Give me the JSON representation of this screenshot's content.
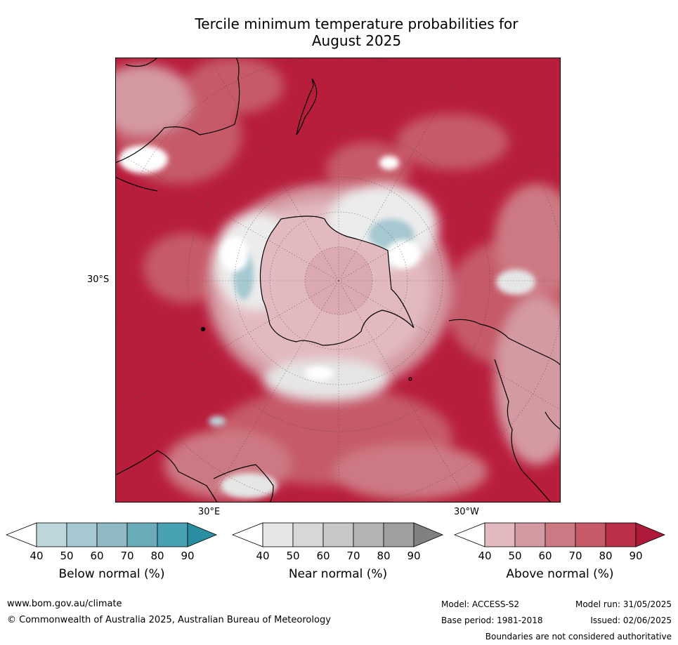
{
  "title": {
    "line1": "Tercile minimum temperature probabilities for",
    "line2": "August 2025"
  },
  "map": {
    "projection": "south-polar-stereographic",
    "lat_label": "30°S",
    "lon_label_east": "30°E",
    "lon_label_west": "30°W"
  },
  "colorbars": [
    {
      "title": "Below normal (%)",
      "ticks": [
        "40",
        "50",
        "60",
        "70",
        "80",
        "90"
      ],
      "colors": [
        "#ffffff",
        "#bdd6dc",
        "#a6c8d0",
        "#8fb9c5",
        "#6aabba",
        "#48a1b2",
        "#2a8ea3"
      ]
    },
    {
      "title": "Near normal (%)",
      "ticks": [
        "40",
        "50",
        "60",
        "70",
        "80",
        "90"
      ],
      "colors": [
        "#ffffff",
        "#e6e6e6",
        "#d7d7d7",
        "#c8c8c8",
        "#b4b4b4",
        "#9f9f9f",
        "#808080"
      ]
    },
    {
      "title": "Above normal (%)",
      "ticks": [
        "40",
        "50",
        "60",
        "70",
        "80",
        "90"
      ],
      "colors": [
        "#ffffff",
        "#e2b9bf",
        "#d49aa2",
        "#cd7983",
        "#c65a69",
        "#bb2f48",
        "#b01a3a"
      ]
    }
  ],
  "footer": {
    "website": "www.bom.gov.au/climate",
    "copyright": "© Commonwealth of Australia 2025, Australian Bureau of Meteorology",
    "model": "Model: ACCESS-S2",
    "model_run": "Model run: 31/05/2025",
    "base_period": "Base period: 1981-2018",
    "issued": "Issued: 02/06/2025",
    "disclaimer": "Boundaries are not considered authoritative"
  }
}
